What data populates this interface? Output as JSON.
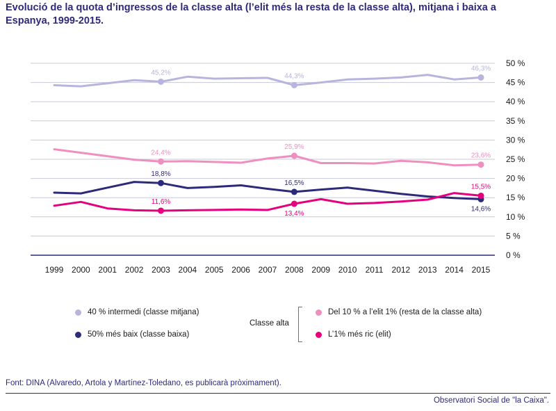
{
  "title": "Evolució de la quota d’ingressos de la classe alta (l’elit més la resta de la classe alta), mitjana i baixa a Espanya, 1999-2015.",
  "source": "Font: DINA (Alvaredo, Artola y Martínez-Toledano, es publicarà pròximament).",
  "credit": "Observatori Social de \"la Caixa\".",
  "legend": {
    "group_label": "Classe alta",
    "items": [
      {
        "label": "40 % intermedi (classe mitjana)",
        "color": "#b7b5dd"
      },
      {
        "label": "50% més baix (classe baixa)",
        "color": "#2d2a7a"
      },
      {
        "label": "Del 10 % a l’elit 1% (resta de la classe alta)",
        "color": "#ee8fc0"
      },
      {
        "label": "L’1% més ric (elit)",
        "color": "#e5007e"
      }
    ]
  },
  "chart_data": {
    "type": "line",
    "x": [
      1999,
      2000,
      2001,
      2002,
      2003,
      2004,
      2005,
      2006,
      2007,
      2008,
      2009,
      2010,
      2011,
      2012,
      2013,
      2014,
      2015
    ],
    "ylim": [
      0,
      50
    ],
    "yticks": [
      0,
      5,
      10,
      15,
      20,
      25,
      30,
      35,
      40,
      45,
      50
    ],
    "ytick_labels": [
      "0 %",
      "5 %",
      "10 %",
      "15 %",
      "20 %",
      "25 %",
      "30 %",
      "35 %",
      "40 %",
      "45 %",
      "50 %"
    ],
    "y_axis_position": "right",
    "grid": true,
    "series": [
      {
        "name": "40 % intermedi (classe mitjana)",
        "color": "#b7b5dd",
        "values": [
          44.3,
          44.0,
          44.8,
          45.6,
          45.2,
          46.5,
          46.0,
          46.1,
          46.2,
          44.3,
          45.0,
          45.8,
          46.0,
          46.3,
          47.0,
          45.8,
          46.3
        ],
        "point_labels": [
          {
            "index": 4,
            "text": "45,2%",
            "pos": "above"
          },
          {
            "index": 9,
            "text": "44,3%",
            "pos": "above"
          },
          {
            "index": 16,
            "text": "46,3%",
            "pos": "above"
          }
        ]
      },
      {
        "name": "Del 10 % a l’elit 1% (resta de la classe alta)",
        "color": "#ee8fc0",
        "values": [
          27.6,
          26.7,
          25.8,
          24.9,
          24.4,
          24.5,
          24.3,
          24.1,
          25.2,
          25.9,
          24.0,
          24.0,
          23.9,
          24.6,
          24.2,
          23.4,
          23.6
        ],
        "point_labels": [
          {
            "index": 4,
            "text": "24,4%",
            "pos": "above"
          },
          {
            "index": 9,
            "text": "25,9%",
            "pos": "above"
          },
          {
            "index": 16,
            "text": "23,6%",
            "pos": "above"
          }
        ]
      },
      {
        "name": "50% més baix (classe baixa)",
        "color": "#2d2a7a",
        "values": [
          16.3,
          16.1,
          17.6,
          19.1,
          18.8,
          17.5,
          17.8,
          18.2,
          17.3,
          16.5,
          17.1,
          17.6,
          16.8,
          16.0,
          15.3,
          14.9,
          14.6
        ],
        "point_labels": [
          {
            "index": 4,
            "text": "18,8%",
            "pos": "above"
          },
          {
            "index": 9,
            "text": "16,5%",
            "pos": "above"
          },
          {
            "index": 16,
            "text": "14,6%",
            "pos": "below"
          }
        ]
      },
      {
        "name": "L’1% més ric (elit)",
        "color": "#e5007e",
        "values": [
          12.9,
          13.9,
          12.2,
          11.7,
          11.6,
          11.7,
          11.8,
          11.9,
          11.8,
          13.4,
          14.6,
          13.4,
          13.6,
          14.0,
          14.5,
          16.2,
          15.5
        ],
        "point_labels": [
          {
            "index": 4,
            "text": "11,6%",
            "pos": "above"
          },
          {
            "index": 9,
            "text": "13,4%",
            "pos": "below"
          },
          {
            "index": 16,
            "text": "15,5%",
            "pos": "above"
          }
        ]
      }
    ]
  }
}
